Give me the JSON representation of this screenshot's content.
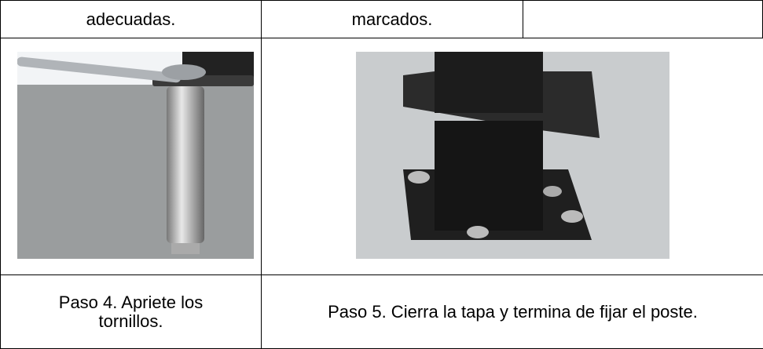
{
  "table": {
    "rows": [
      [
        "adecuadas.",
        "marcados."
      ],
      [
        "Paso 4. Apriete los tornillos.",
        "Paso 5. Cierra la tapa y termina de fijar el poste."
      ]
    ]
  }
}
